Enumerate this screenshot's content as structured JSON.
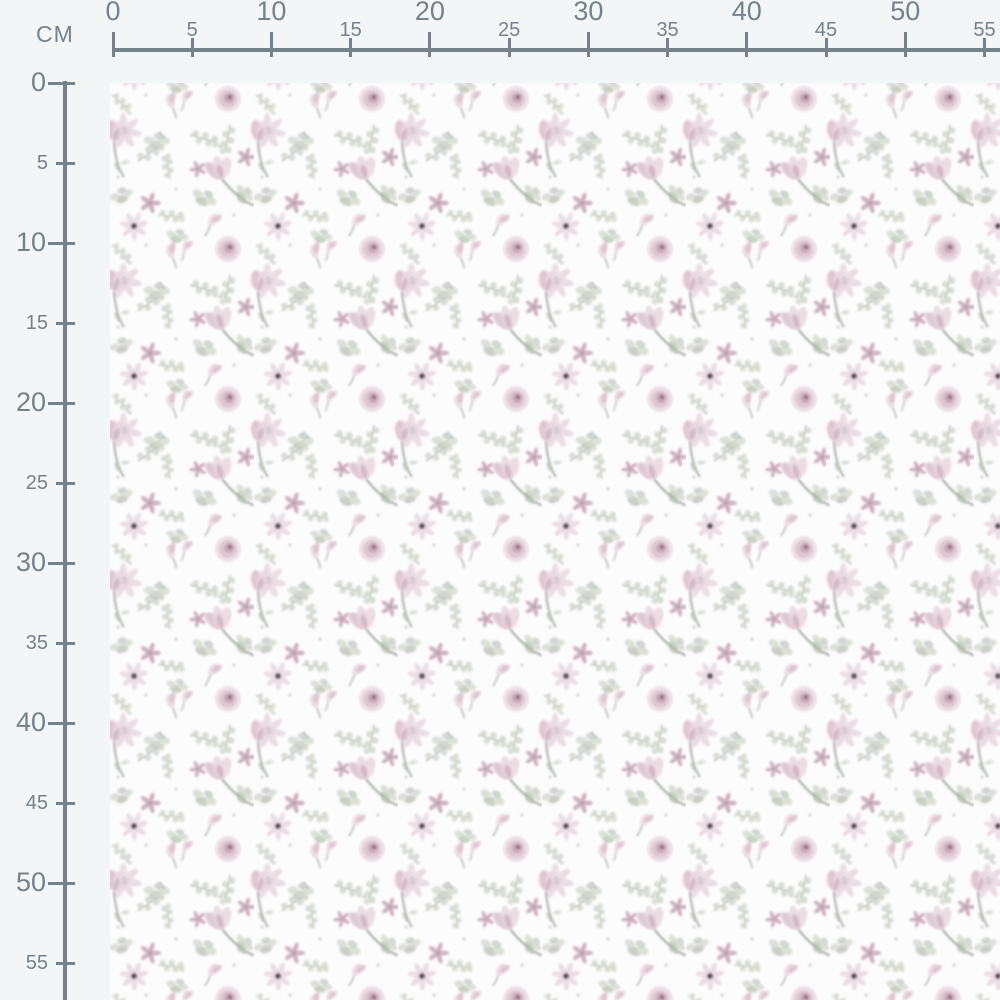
{
  "unit_label": "CM",
  "ruler": {
    "top": {
      "ticks": [
        0,
        5,
        10,
        15,
        20,
        25,
        30,
        35,
        40,
        45,
        50,
        55
      ]
    },
    "left": {
      "ticks": [
        0,
        5,
        10,
        15,
        20,
        25,
        30,
        35,
        40,
        45,
        50,
        55
      ]
    }
  },
  "fabric": {
    "pattern": "watercolor floral with magnolias, daisies and eucalyptus sprigs",
    "repeat_cm": 9
  },
  "colors": {
    "page_bg": "#f3f6f6",
    "ruler": "#76828b",
    "fabric_bg": "#fdfcfd",
    "petal_light": "#e9d9e0",
    "petal_mid": "#d9bdc9",
    "petal_deep": "#c09aaa",
    "flower_center": "#523c49",
    "leaf_light": "#d2d7cd",
    "leaf_mid": "#b8c0b4",
    "leaf_grey": "#a9b1ab",
    "stem": "#97a099",
    "speck": "#a9b0b4"
  }
}
